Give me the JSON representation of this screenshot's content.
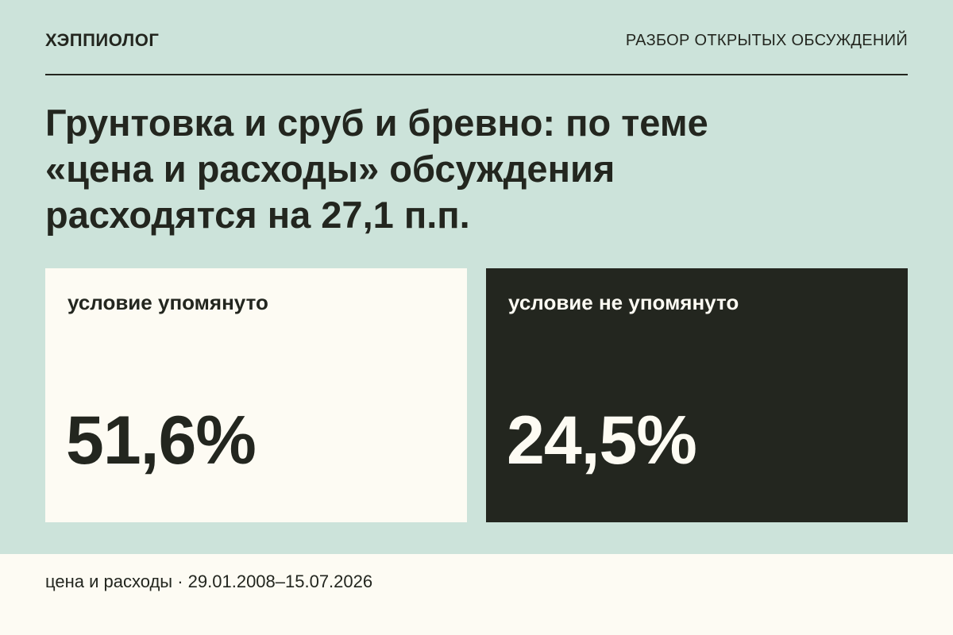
{
  "header": {
    "brand": "ХЭППИОЛОГ",
    "section": "РАЗБОР ОТКРЫТЫХ ОБСУЖДЕНИЙ"
  },
  "title": [
    "Грунтовка и сруб и бревно: по теме",
    "«цена и расходы» обсуждения",
    "расходятся на 27,1 п.п."
  ],
  "cards": [
    {
      "label": "условие упомянуто",
      "value": "51,6%"
    },
    {
      "label": "условие не упомянуто",
      "value": "24,5%"
    }
  ],
  "footer": {
    "text": "цена и расходы · 29.01.2008–15.07.2026"
  }
}
